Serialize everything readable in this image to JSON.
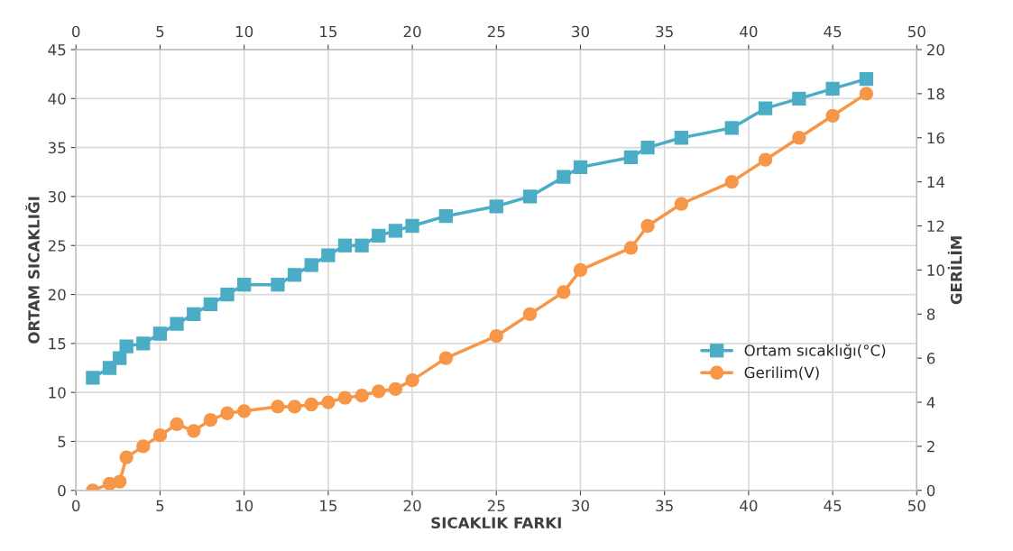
{
  "chart_data": {
    "type": "line",
    "xlabel": "SICAKLIK FARKI",
    "ylabel": "ORTAM SICAKLIĞI",
    "y2label": "GERİLİM",
    "xlim": [
      0,
      50
    ],
    "xticks": [
      0,
      5,
      10,
      15,
      20,
      25,
      30,
      35,
      40,
      45,
      50
    ],
    "x2lim": [
      0,
      50
    ],
    "x2ticks": [
      0,
      5,
      10,
      15,
      20,
      25,
      30,
      35,
      40,
      45,
      50
    ],
    "ylim": [
      0,
      45
    ],
    "yticks": [
      0,
      5,
      10,
      15,
      20,
      25,
      30,
      35,
      40,
      45
    ],
    "y2lim": [
      0,
      20
    ],
    "y2ticks": [
      0,
      2,
      4,
      6,
      8,
      10,
      12,
      14,
      16,
      18,
      20
    ],
    "grid": true,
    "legend": "right",
    "line_style": "solid",
    "series": [
      {
        "name": "Ortam sıcaklığı(°C)",
        "color": "#4bacc6",
        "marker": "square",
        "x": [
          1,
          2,
          2.6,
          3,
          4,
          5,
          6,
          7,
          8,
          9,
          10,
          12,
          13,
          14,
          15,
          16,
          17,
          18,
          19,
          20,
          22,
          25,
          27,
          29,
          30,
          33,
          34,
          36,
          39,
          41,
          43,
          45,
          47
        ],
        "values": [
          11.5,
          12.5,
          13.5,
          14.7,
          15,
          16,
          17,
          18,
          19,
          20,
          21,
          21,
          22,
          23,
          24,
          25,
          25,
          26,
          26.5,
          27,
          28,
          29,
          30,
          32,
          33,
          34,
          35,
          36,
          37,
          39,
          40,
          41,
          42
        ]
      },
      {
        "name": "Gerilim(V)",
        "color": "#f79646",
        "marker": "circle",
        "axis": "y2",
        "x": [
          1,
          2,
          2.6,
          3,
          4,
          5,
          6,
          7,
          8,
          9,
          10,
          12,
          13,
          14,
          15,
          16,
          17,
          18,
          19,
          20,
          22,
          25,
          27,
          29,
          30,
          33,
          34,
          36,
          39,
          41,
          43,
          45,
          47
        ],
        "values": [
          0,
          0.3,
          0.4,
          1.5,
          2,
          2.5,
          3,
          2.7,
          3.2,
          3.5,
          3.6,
          3.8,
          3.8,
          3.9,
          4.0,
          4.2,
          4.3,
          4.5,
          4.6,
          5,
          6,
          7,
          8,
          9,
          10,
          11,
          12,
          13,
          14,
          15,
          16,
          17,
          18
        ]
      }
    ]
  }
}
